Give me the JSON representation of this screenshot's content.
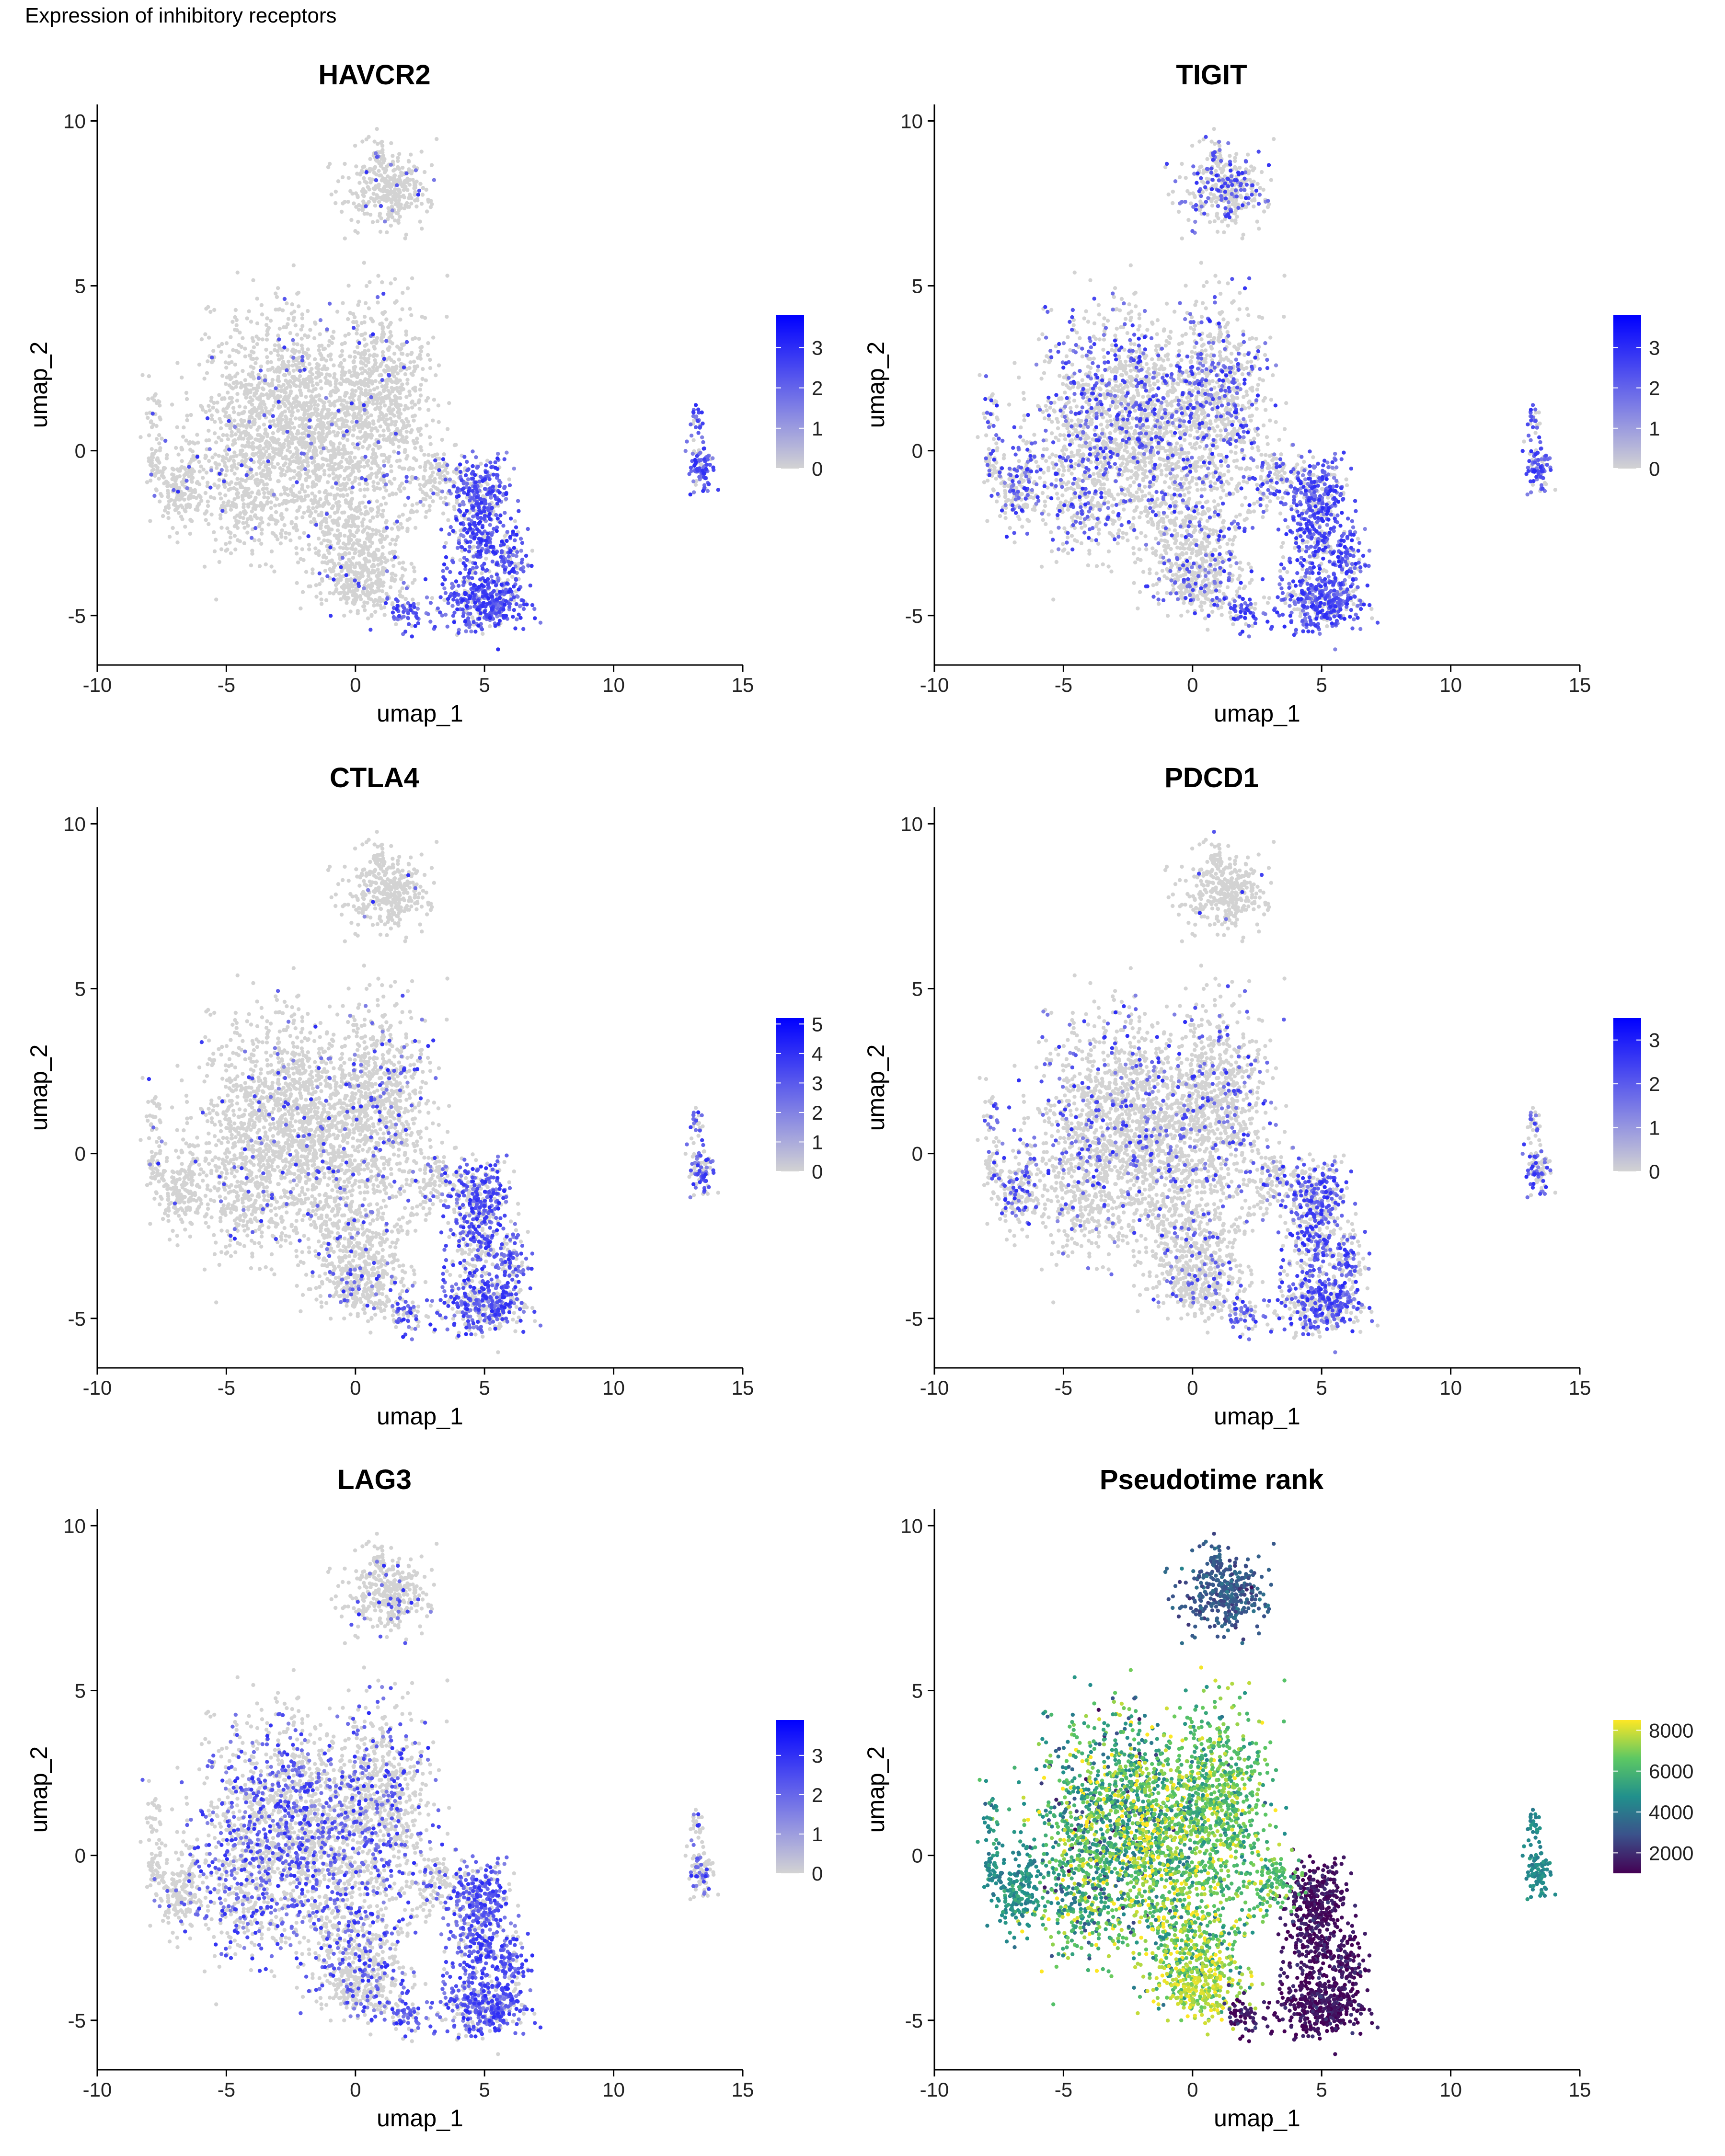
{
  "page_title": "Expression of inhibitory receptors",
  "colors": {
    "expr_low": "#D3D3D3",
    "expr_high": "#0000FF",
    "viridis": [
      "#440154",
      "#3B528B",
      "#21908C",
      "#5DC863",
      "#FDE725"
    ]
  },
  "chart_data": [
    {
      "type": "scatter",
      "title": "HAVCR2",
      "xlabel": "umap_1",
      "ylabel": "umap_2",
      "xticks": [
        -10,
        -5,
        0,
        5,
        10,
        15
      ],
      "yticks": [
        -5,
        0,
        5,
        10
      ],
      "xlim": [
        -10,
        15
      ],
      "ylim": [
        -6.5,
        10.5
      ],
      "grid": false,
      "legend": {
        "position": "right",
        "type": "gradient",
        "min": 0,
        "max": 3.8,
        "ticks": [
          0,
          1,
          2,
          3
        ],
        "colors": [
          "#D3D3D3",
          "#0000FF"
        ]
      },
      "expression_pattern": "high in lower-right cluster (x 4 to 6.5, y -5.3 to -1) and island (x 13-14), low elsewhere"
    },
    {
      "type": "scatter",
      "title": "TIGIT",
      "xlabel": "umap_1",
      "ylabel": "umap_2",
      "xticks": [
        -10,
        -5,
        0,
        5,
        10,
        15
      ],
      "yticks": [
        -5,
        0,
        5,
        10
      ],
      "xlim": [
        -10,
        15
      ],
      "ylim": [
        -6.5,
        10.5
      ],
      "grid": false,
      "legend": {
        "position": "right",
        "type": "gradient",
        "min": 0,
        "max": 3.8,
        "ticks": [
          0,
          1,
          2,
          3
        ],
        "colors": [
          "#D3D3D3",
          "#0000FF"
        ]
      },
      "expression_pattern": "widespread moderate expression, strongest in lower-right cluster"
    },
    {
      "type": "scatter",
      "title": "CTLA4",
      "xlabel": "umap_1",
      "ylabel": "umap_2",
      "xticks": [
        -10,
        -5,
        0,
        5,
        10,
        15
      ],
      "yticks": [
        -5,
        0,
        5,
        10
      ],
      "xlim": [
        -10,
        15
      ],
      "ylim": [
        -6.5,
        10.5
      ],
      "grid": false,
      "legend": {
        "position": "right",
        "type": "gradient",
        "min": 0,
        "max": 5.2,
        "ticks": [
          0,
          1,
          2,
          3,
          4,
          5
        ],
        "colors": [
          "#D3D3D3",
          "#0000FF"
        ]
      },
      "expression_pattern": "moderate in lower-right cluster and island, sparse elsewhere"
    },
    {
      "type": "scatter",
      "title": "PDCD1",
      "xlabel": "umap_1",
      "ylabel": "umap_2",
      "xticks": [
        -10,
        -5,
        0,
        5,
        10,
        15
      ],
      "yticks": [
        -5,
        0,
        5,
        10
      ],
      "xlim": [
        -10,
        15
      ],
      "ylim": [
        -6.5,
        10.5
      ],
      "grid": false,
      "legend": {
        "position": "right",
        "type": "gradient",
        "min": 0,
        "max": 3.5,
        "ticks": [
          0,
          1,
          2,
          3
        ],
        "colors": [
          "#D3D3D3",
          "#0000FF"
        ]
      },
      "expression_pattern": "scattered moderate expression, higher in lower-right cluster"
    },
    {
      "type": "scatter",
      "title": "LAG3",
      "xlabel": "umap_1",
      "ylabel": "umap_2",
      "xticks": [
        -10,
        -5,
        0,
        5,
        10,
        15
      ],
      "yticks": [
        -5,
        0,
        5,
        10
      ],
      "xlim": [
        -10,
        15
      ],
      "ylim": [
        -6.5,
        10.5
      ],
      "grid": false,
      "legend": {
        "position": "right",
        "type": "gradient",
        "min": 0,
        "max": 3.9,
        "ticks": [
          0,
          1,
          2,
          3
        ],
        "colors": [
          "#D3D3D3",
          "#0000FF"
        ]
      },
      "expression_pattern": "widespread light expression, stronger in lower-right cluster"
    },
    {
      "type": "scatter",
      "title": "Pseudotime rank",
      "xlabel": "umap_1",
      "ylabel": "umap_2",
      "xticks": [
        -10,
        -5,
        0,
        5,
        10,
        15
      ],
      "yticks": [
        -5,
        0,
        5,
        10
      ],
      "xlim": [
        -10,
        15
      ],
      "ylim": [
        -6.5,
        10.5
      ],
      "grid": false,
      "legend": {
        "position": "right",
        "type": "gradient",
        "min": 1000,
        "max": 8500,
        "ticks": [
          2000,
          4000,
          6000,
          8000
        ],
        "colors": [
          "#440154",
          "#3B528B",
          "#21908C",
          "#5DC863",
          "#FDE725"
        ]
      },
      "expression_pattern": "top cluster low (~2000), left region ~4000-5000, center high (~7000-8500), lower-right ~1000"
    }
  ]
}
